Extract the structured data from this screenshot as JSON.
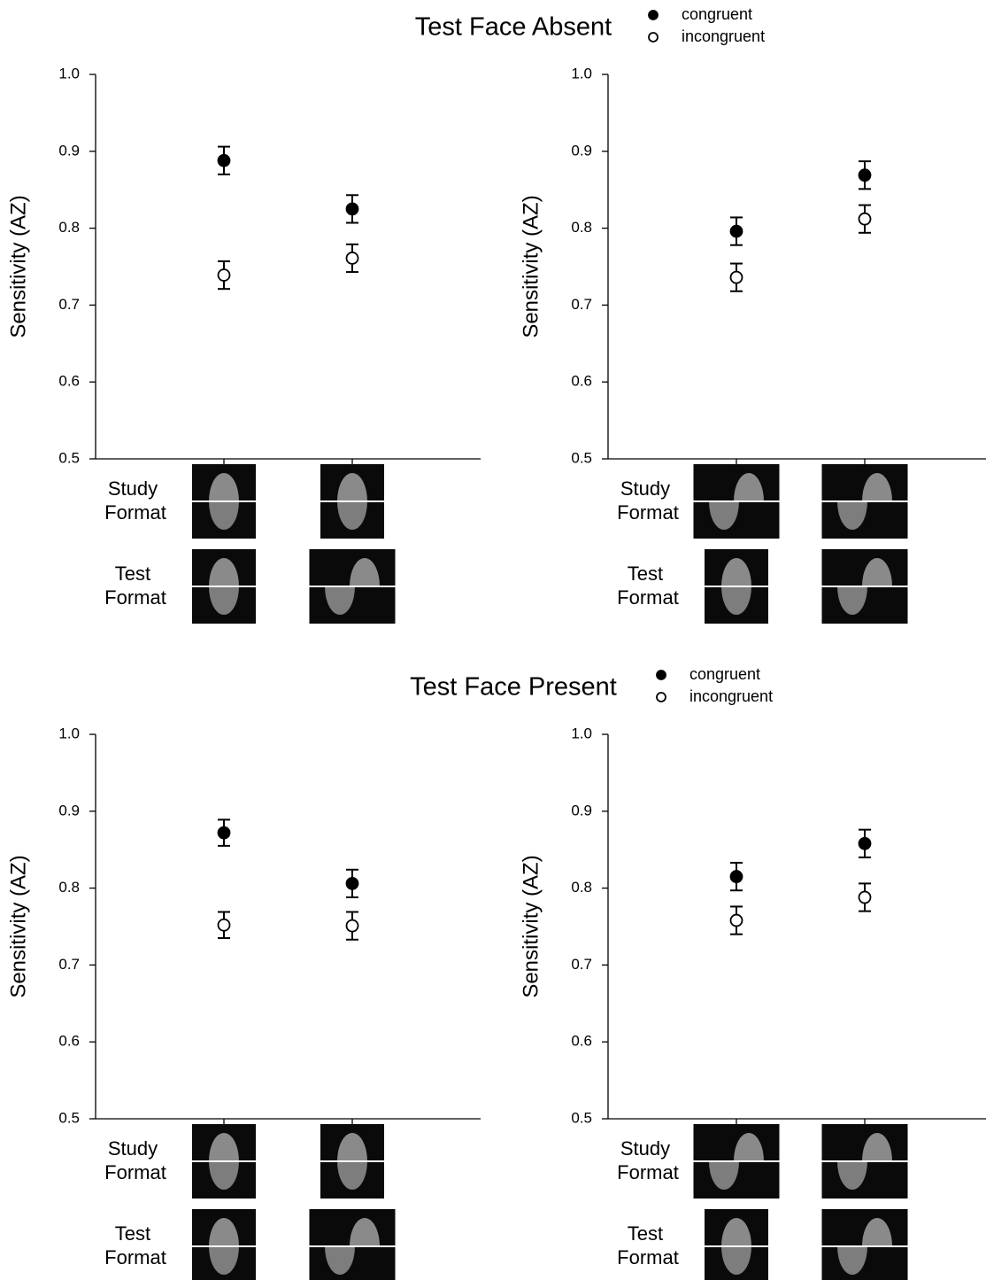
{
  "chart_data": [
    {
      "type": "errorbar",
      "title": "Test Face Absent",
      "ylabel": "Sensitivity (AZ)",
      "row_labels": [
        "Study Format",
        "Test Format"
      ],
      "categories": [
        null,
        null
      ],
      "ylim": [
        0.5,
        1.0
      ],
      "yticks": [
        0.5,
        0.6,
        0.7,
        0.8,
        0.9,
        {
          "value": 1.0,
          "label": "1.0"
        }
      ],
      "series": [
        {
          "name": "congruent",
          "color": "#000000",
          "values": [
            0.888,
            0.825
          ],
          "errors": [
            0.018,
            0.018
          ]
        },
        {
          "name": "incongruent",
          "color": "#ffffff",
          "values": [
            0.739,
            0.761
          ],
          "errors": [
            0.018,
            0.018
          ]
        }
      ]
    },
    {
      "type": "errorbar",
      "ylabel": "Sensitivity (AZ)",
      "row_labels": [
        "Study Format",
        "Test Format"
      ],
      "categories": [
        null,
        null
      ],
      "ylim": [
        0.5,
        1.0
      ],
      "yticks": [
        0.5,
        0.6,
        0.7,
        0.8,
        0.9,
        {
          "value": 1.0,
          "label": "1.0"
        }
      ],
      "series": [
        {
          "color": "#000000",
          "values": [
            0.796,
            0.869
          ],
          "errors": [
            0.018,
            0.018
          ]
        },
        {
          "color": "#ffffff",
          "values": [
            0.736,
            0.812
          ],
          "errors": [
            0.018,
            0.018
          ]
        }
      ]
    },
    {
      "type": "errorbar",
      "title": "Test Face Present",
      "ylabel": "Sensitivity (AZ)",
      "row_labels": [
        "Study Format",
        "Test Format"
      ],
      "categories": [
        null,
        null
      ],
      "ylim": [
        0.5,
        1.0
      ],
      "yticks": [
        0.5,
        0.6,
        0.7,
        0.8,
        0.9,
        {
          "value": 1.0,
          "label": "1.0"
        }
      ],
      "series": [
        {
          "name": "congruent",
          "color": "#000000",
          "values": [
            0.872,
            0.806
          ],
          "errors": [
            0.017,
            0.018
          ]
        },
        {
          "name": "incongruent",
          "color": "#ffffff",
          "values": [
            0.752,
            0.751
          ],
          "errors": [
            0.017,
            0.018
          ]
        }
      ]
    },
    {
      "type": "errorbar",
      "ylabel": "Sensitivity (AZ)",
      "row_labels": [
        "Study Format",
        "Test Format"
      ],
      "categories": [
        null,
        null
      ],
      "ylim": [
        0.5,
        1.0
      ],
      "yticks": [
        0.5,
        0.6,
        0.7,
        0.8,
        0.9,
        {
          "value": 1.0,
          "label": "1.0"
        }
      ],
      "series": [
        {
          "color": "#000000",
          "values": [
            0.815,
            0.858
          ],
          "errors": [
            0.018,
            0.018
          ]
        },
        {
          "color": "#ffffff",
          "values": [
            0.758,
            0.788
          ],
          "errors": [
            0.018,
            0.018
          ]
        }
      ]
    }
  ]
}
